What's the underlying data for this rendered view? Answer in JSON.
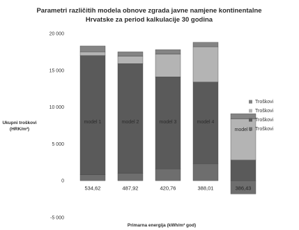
{
  "chart_data": {
    "type": "bar",
    "stacked": true,
    "title_lines": [
      "Parametri različitih modela obnove zgrada javne namjene kontinentalne",
      "Hrvatske za period kalkulacije 30 godina"
    ],
    "xlabel": "Primarna energija (kWh/m² god)",
    "ylabel_lines": [
      "Ukupni troškovi",
      "(HRK/m²)"
    ],
    "ylim": [
      -5000,
      20000
    ],
    "yticks": [
      -5000,
      0,
      5000,
      10000,
      15000,
      20000
    ],
    "ytick_labels": [
      "-5 000",
      "0",
      "5 000",
      "10 000",
      "15 000",
      "20 000"
    ],
    "categories": [
      "534,62",
      "487,92",
      "420,76",
      "388,01",
      "386,43"
    ],
    "bar_labels": [
      "model 1",
      "model 2",
      "model 3",
      "model 4",
      "model 5"
    ],
    "series": [
      {
        "name": "Troškovi",
        "color": "#6e6e6e",
        "values": [
          800,
          1000,
          1600,
          2300,
          -1800
        ]
      },
      {
        "name": "Troškovi",
        "color": "#5a5a5a",
        "values": [
          16200,
          14900,
          12500,
          11100,
          2800
        ]
      },
      {
        "name": "Troškovi",
        "color": "#b4b4b4",
        "values": [
          500,
          1000,
          3100,
          4800,
          5600
        ]
      },
      {
        "name": "Troškovi",
        "color": "#848484",
        "values": [
          800,
          600,
          600,
          600,
          700
        ]
      }
    ],
    "legend_position": "right",
    "grid": false
  }
}
